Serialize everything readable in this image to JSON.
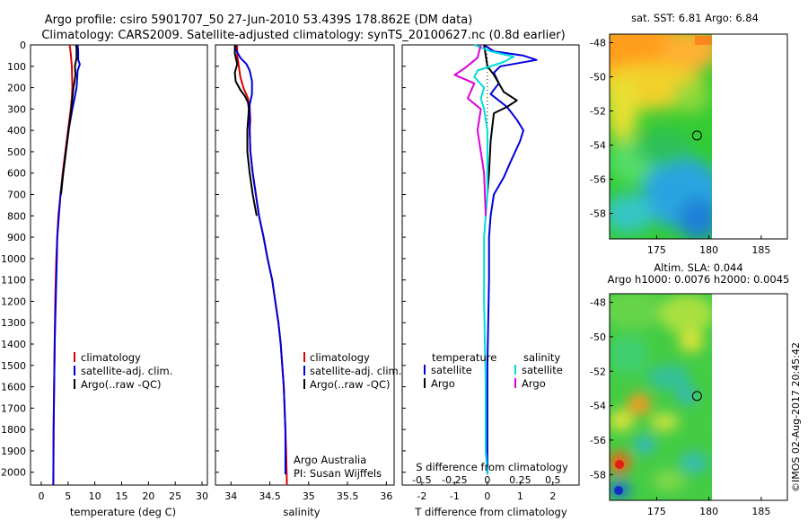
{
  "title": {
    "line1": "Argo profile: csiro 5901707_50 27-Jun-2010 53.439S 178.862E (DM data)",
    "line2": "Climatology: CARS2009. Satellite-adjusted climatology: synTS_20100627.nc (0.8d earlier)"
  },
  "depth_ticks": [
    "0",
    "100",
    "200",
    "300",
    "400",
    "500",
    "600",
    "700",
    "800",
    "900",
    "1000",
    "1100",
    "1200",
    "1300",
    "1400",
    "1500",
    "1600",
    "1700",
    "1800",
    "1900",
    "2000"
  ],
  "colors": {
    "climatology": "#dd0000",
    "satellite": "#0000dd",
    "argo": "#000000",
    "salinity_sat": "#00dddd",
    "salinity_argo": "#dd00dd"
  },
  "chart_data": [
    {
      "type": "line",
      "id": "temperature",
      "xlabel": "temperature (deg C)",
      "xlim": [
        -2,
        31
      ],
      "xticks": [
        0,
        5,
        10,
        15,
        20,
        25,
        30
      ],
      "ylim": [
        2060,
        0
      ],
      "legend": {
        "placement": "center-left",
        "entries": [
          "climatology",
          "satellite-adj. clim.",
          "Argo(..raw -QC)"
        ]
      },
      "series": [
        {
          "name": "climatology",
          "color": "#dd0000",
          "points": [
            [
              5.3,
              0
            ],
            [
              5.5,
              40
            ],
            [
              5.7,
              100
            ],
            [
              5.8,
              200
            ],
            [
              5.7,
              250
            ],
            [
              5.5,
              300
            ],
            [
              5.0,
              400
            ],
            [
              4.5,
              500
            ],
            [
              4.0,
              600
            ],
            [
              3.6,
              700
            ],
            [
              3.2,
              800
            ],
            [
              3.0,
              900
            ],
            [
              2.8,
              1000
            ],
            [
              2.6,
              1200
            ],
            [
              2.5,
              1400
            ],
            [
              2.4,
              1600
            ],
            [
              2.3,
              1800
            ],
            [
              2.25,
              2060
            ]
          ]
        },
        {
          "name": "satellite-adj. clim.",
          "color": "#0000dd",
          "points": [
            [
              6.8,
              0
            ],
            [
              6.9,
              30
            ],
            [
              6.9,
              70
            ],
            [
              7.2,
              90
            ],
            [
              6.8,
              120
            ],
            [
              6.6,
              200
            ],
            [
              6.2,
              250
            ],
            [
              5.8,
              300
            ],
            [
              5.1,
              400
            ],
            [
              4.6,
              500
            ],
            [
              4.1,
              600
            ],
            [
              3.6,
              700
            ],
            [
              3.3,
              800
            ],
            [
              3.0,
              900
            ],
            [
              2.9,
              1000
            ],
            [
              2.7,
              1200
            ],
            [
              2.5,
              1400
            ],
            [
              2.4,
              1600
            ],
            [
              2.3,
              1800
            ],
            [
              2.25,
              2060
            ]
          ]
        },
        {
          "name": "Argo(..raw -QC)",
          "color": "#000000",
          "points": [
            [
              6.5,
              0
            ],
            [
              6.6,
              20
            ],
            [
              6.6,
              60
            ],
            [
              6.3,
              100
            ],
            [
              6.4,
              140
            ],
            [
              6.0,
              200
            ],
            [
              5.8,
              250
            ],
            [
              5.6,
              300
            ],
            [
              5.1,
              400
            ],
            [
              4.6,
              500
            ],
            [
              4.1,
              600
            ],
            [
              3.7,
              700
            ]
          ]
        }
      ]
    },
    {
      "type": "line",
      "id": "salinity",
      "xlabel": "salinity",
      "xlim": [
        33.8,
        36.1
      ],
      "xticks": [
        34,
        34.5,
        35,
        35.5,
        36
      ],
      "ylim": [
        2060,
        0
      ],
      "legend": {
        "placement": "center-right",
        "entries": [
          "climatology",
          "satellite-adj. clim.",
          "Argo(..raw -QC)"
        ]
      },
      "annotation": [
        "Argo Australia",
        "PI: Susan Wijffels"
      ],
      "series": [
        {
          "name": "climatology",
          "color": "#dd0000",
          "points": [
            [
              34.08,
              0
            ],
            [
              34.08,
              50
            ],
            [
              34.1,
              100
            ],
            [
              34.12,
              150
            ],
            [
              34.16,
              200
            ],
            [
              34.22,
              250
            ],
            [
              34.24,
              300
            ],
            [
              34.25,
              350
            ],
            [
              34.24,
              400
            ],
            [
              34.25,
              500
            ],
            [
              34.28,
              600
            ],
            [
              34.32,
              700
            ],
            [
              34.36,
              800
            ],
            [
              34.42,
              900
            ],
            [
              34.47,
              1000
            ],
            [
              34.53,
              1100
            ],
            [
              34.57,
              1200
            ],
            [
              34.61,
              1300
            ],
            [
              34.64,
              1400
            ],
            [
              34.66,
              1500
            ],
            [
              34.68,
              1600
            ],
            [
              34.7,
              1800
            ],
            [
              34.71,
              1900
            ],
            [
              34.72,
              2060
            ]
          ]
        },
        {
          "name": "satellite-adj. clim.",
          "color": "#0000dd",
          "points": [
            [
              34.06,
              0
            ],
            [
              34.06,
              20
            ],
            [
              34.12,
              60
            ],
            [
              34.2,
              90
            ],
            [
              34.24,
              120
            ],
            [
              34.27,
              170
            ],
            [
              34.27,
              230
            ],
            [
              34.24,
              280
            ],
            [
              34.24,
              350
            ],
            [
              34.24,
              400
            ],
            [
              34.25,
              500
            ],
            [
              34.28,
              600
            ],
            [
              34.32,
              700
            ],
            [
              34.36,
              800
            ],
            [
              34.42,
              900
            ],
            [
              34.47,
              1000
            ],
            [
              34.53,
              1100
            ],
            [
              34.57,
              1200
            ],
            [
              34.61,
              1300
            ],
            [
              34.64,
              1400
            ],
            [
              34.66,
              1500
            ],
            [
              34.68,
              1600
            ],
            [
              34.69,
              1700
            ],
            [
              34.7,
              1800
            ],
            [
              34.7,
              1900
            ],
            [
              34.7,
              2010
            ]
          ]
        },
        {
          "name": "Argo(..raw -QC)",
          "color": "#000000",
          "points": [
            [
              34.05,
              0
            ],
            [
              34.05,
              40
            ],
            [
              34.08,
              90
            ],
            [
              34.05,
              130
            ],
            [
              34.06,
              170
            ],
            [
              34.12,
              210
            ],
            [
              34.18,
              240
            ],
            [
              34.22,
              270
            ],
            [
              34.23,
              300
            ],
            [
              34.21,
              400
            ],
            [
              34.21,
              500
            ],
            [
              34.24,
              600
            ],
            [
              34.28,
              700
            ],
            [
              34.33,
              800
            ]
          ]
        }
      ]
    },
    {
      "type": "line",
      "id": "difference",
      "xlabel": "T difference from climatology",
      "xlabel_top": "S difference from climatology",
      "xlim": [
        -2.6,
        2.8
      ],
      "xticks": [
        -2,
        -1,
        0,
        1,
        2
      ],
      "xticks_top": [
        -0.5,
        -0.25,
        0,
        0.25,
        0.5
      ],
      "ylim": [
        2060,
        0
      ],
      "legend": {
        "placement": "center",
        "groups": [
          {
            "title": "temperature",
            "entries": [
              "satellite",
              "Argo"
            ]
          },
          {
            "title": "salinity",
            "entries": [
              "satellite",
              "Argo"
            ]
          }
        ]
      },
      "series": [
        {
          "name": "satellite",
          "group": "temperature",
          "color": "#0000dd",
          "points": [
            [
              -0.1,
              0
            ],
            [
              0.2,
              30
            ],
            [
              1.1,
              50
            ],
            [
              1.5,
              70
            ],
            [
              0.4,
              100
            ],
            [
              0.2,
              130
            ],
            [
              0.35,
              180
            ],
            [
              0.1,
              230
            ],
            [
              0.6,
              290
            ],
            [
              0.9,
              350
            ],
            [
              1.1,
              400
            ],
            [
              1.0,
              450
            ],
            [
              0.7,
              550
            ],
            [
              0.5,
              620
            ],
            [
              0.2,
              700
            ],
            [
              0.1,
              800
            ],
            [
              0.05,
              900
            ],
            [
              0.05,
              1100
            ],
            [
              0.0,
              1500
            ],
            [
              0.0,
              1900
            ],
            [
              0.0,
              2010
            ]
          ]
        },
        {
          "name": "Argo",
          "group": "temperature",
          "color": "#000000",
          "points": [
            [
              -0.1,
              0
            ],
            [
              0.0,
              100
            ],
            [
              0.2,
              140
            ],
            [
              0.5,
              220
            ],
            [
              0.9,
              260
            ],
            [
              0.6,
              290
            ],
            [
              0.2,
              320
            ],
            [
              0.1,
              450
            ],
            [
              0.05,
              600
            ],
            [
              0.0,
              700
            ]
          ]
        },
        {
          "name": "satellite",
          "group": "salinity",
          "color": "#00dddd",
          "points": [
            [
              -0.4,
              0
            ],
            [
              0.1,
              30
            ],
            [
              0.8,
              55
            ],
            [
              0.5,
              80
            ],
            [
              -0.3,
              120
            ],
            [
              -0.4,
              150
            ],
            [
              -0.1,
              200
            ],
            [
              -0.2,
              250
            ],
            [
              -0.1,
              300
            ],
            [
              0.0,
              400
            ],
            [
              0.0,
              700
            ],
            [
              -0.1,
              900
            ],
            [
              -0.1,
              1200
            ],
            [
              -0.05,
              1600
            ],
            [
              -0.05,
              1900
            ],
            [
              0.0,
              2010
            ]
          ]
        },
        {
          "name": "Argo",
          "group": "salinity",
          "color": "#dd00dd",
          "points": [
            [
              -0.2,
              0
            ],
            [
              -0.3,
              60
            ],
            [
              -0.7,
              110
            ],
            [
              -1.0,
              140
            ],
            [
              -0.4,
              180
            ],
            [
              -0.6,
              250
            ],
            [
              -0.2,
              300
            ],
            [
              -0.3,
              400
            ],
            [
              -0.1,
              600
            ],
            [
              -0.05,
              800
            ]
          ]
        }
      ]
    },
    {
      "type": "heatmap",
      "id": "sst-map",
      "title": "sat. SST: 6.81  Argo: 6.84",
      "xlim": [
        170.5,
        187.5
      ],
      "ylim": [
        -59.5,
        -47.5
      ],
      "xticks": [
        175,
        180,
        185
      ],
      "yticks": [
        -48,
        -50,
        -52,
        -54,
        -56,
        -58
      ],
      "data_extent_lon": [
        170.5,
        180
      ],
      "argo_position": [
        178.862,
        -53.439
      ]
    },
    {
      "type": "heatmap",
      "id": "sla-map",
      "title": "Altim. SLA: 0.044",
      "subtitle": "Argo h1000: 0.0076 h2000: 0.0045",
      "xlim": [
        170.5,
        187.5
      ],
      "ylim": [
        -59.5,
        -47.5
      ],
      "xticks": [
        175,
        180,
        185
      ],
      "yticks": [
        -48,
        -50,
        -52,
        -54,
        -56,
        -58
      ],
      "data_extent_lon": [
        170.5,
        180
      ],
      "argo_position": [
        178.862,
        -53.439
      ]
    }
  ],
  "copyright": "©IMOS 02-Aug-2017 20:45:42"
}
